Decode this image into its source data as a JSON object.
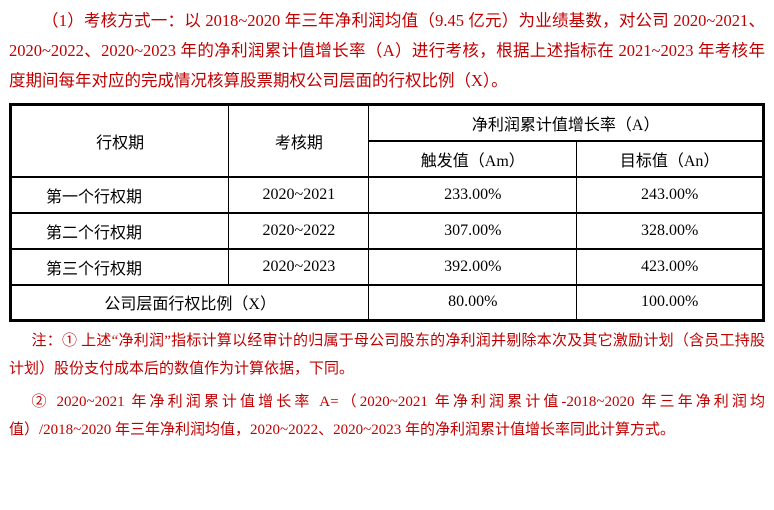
{
  "colors": {
    "accent_red": "#c00000",
    "table_border": "#000000"
  },
  "intro": {
    "text": "（1）考核方式一：以 2018~2020 年三年净利润均值（9.45 亿元）为业绩基数，对公司 2020~2021、2020~2022、2020~2023 年的净利润累计值增长率（A）进行考核，根据上述指标在 2021~2023 年考核年度期间每年对应的完成情况核算股票期权公司层面的行权比例（X）。"
  },
  "table": {
    "headers": {
      "exercise_period": "行权期",
      "assessment_period": "考核期",
      "growth_rate_group": "净利润累计值增长率（A）",
      "trigger_value": "触发值（Am）",
      "target_value": "目标值（An）"
    },
    "rows": [
      {
        "exercise_period": "第一个行权期",
        "assessment_period": "2020~2021",
        "trigger": "233.00%",
        "target": "243.00%"
      },
      {
        "exercise_period": "第二个行权期",
        "assessment_period": "2020~2022",
        "trigger": "307.00%",
        "target": "328.00%"
      },
      {
        "exercise_period": "第三个行权期",
        "assessment_period": "2020~2023",
        "trigger": "392.00%",
        "target": "423.00%"
      }
    ],
    "footer": {
      "label": "公司层面行权比例（X）",
      "trigger": "80.00%",
      "target": "100.00%"
    }
  },
  "notes": {
    "note1": "注：① 上述“净利润”指标计算以经审计的归属于母公司股东的净利润并剔除本次及其它激励计划（含员工持股计划）股份支付成本后的数值作为计算依据，下同。",
    "note2": "② 2020~2021 年净利润累计值增长率 A=（2020~2021 年净利润累计值-2018~2020 年三年净利润均值）/2018~2020 年三年净利润均值，2020~2022、2020~2023 年的净利润累计值增长率同此计算方式。"
  }
}
